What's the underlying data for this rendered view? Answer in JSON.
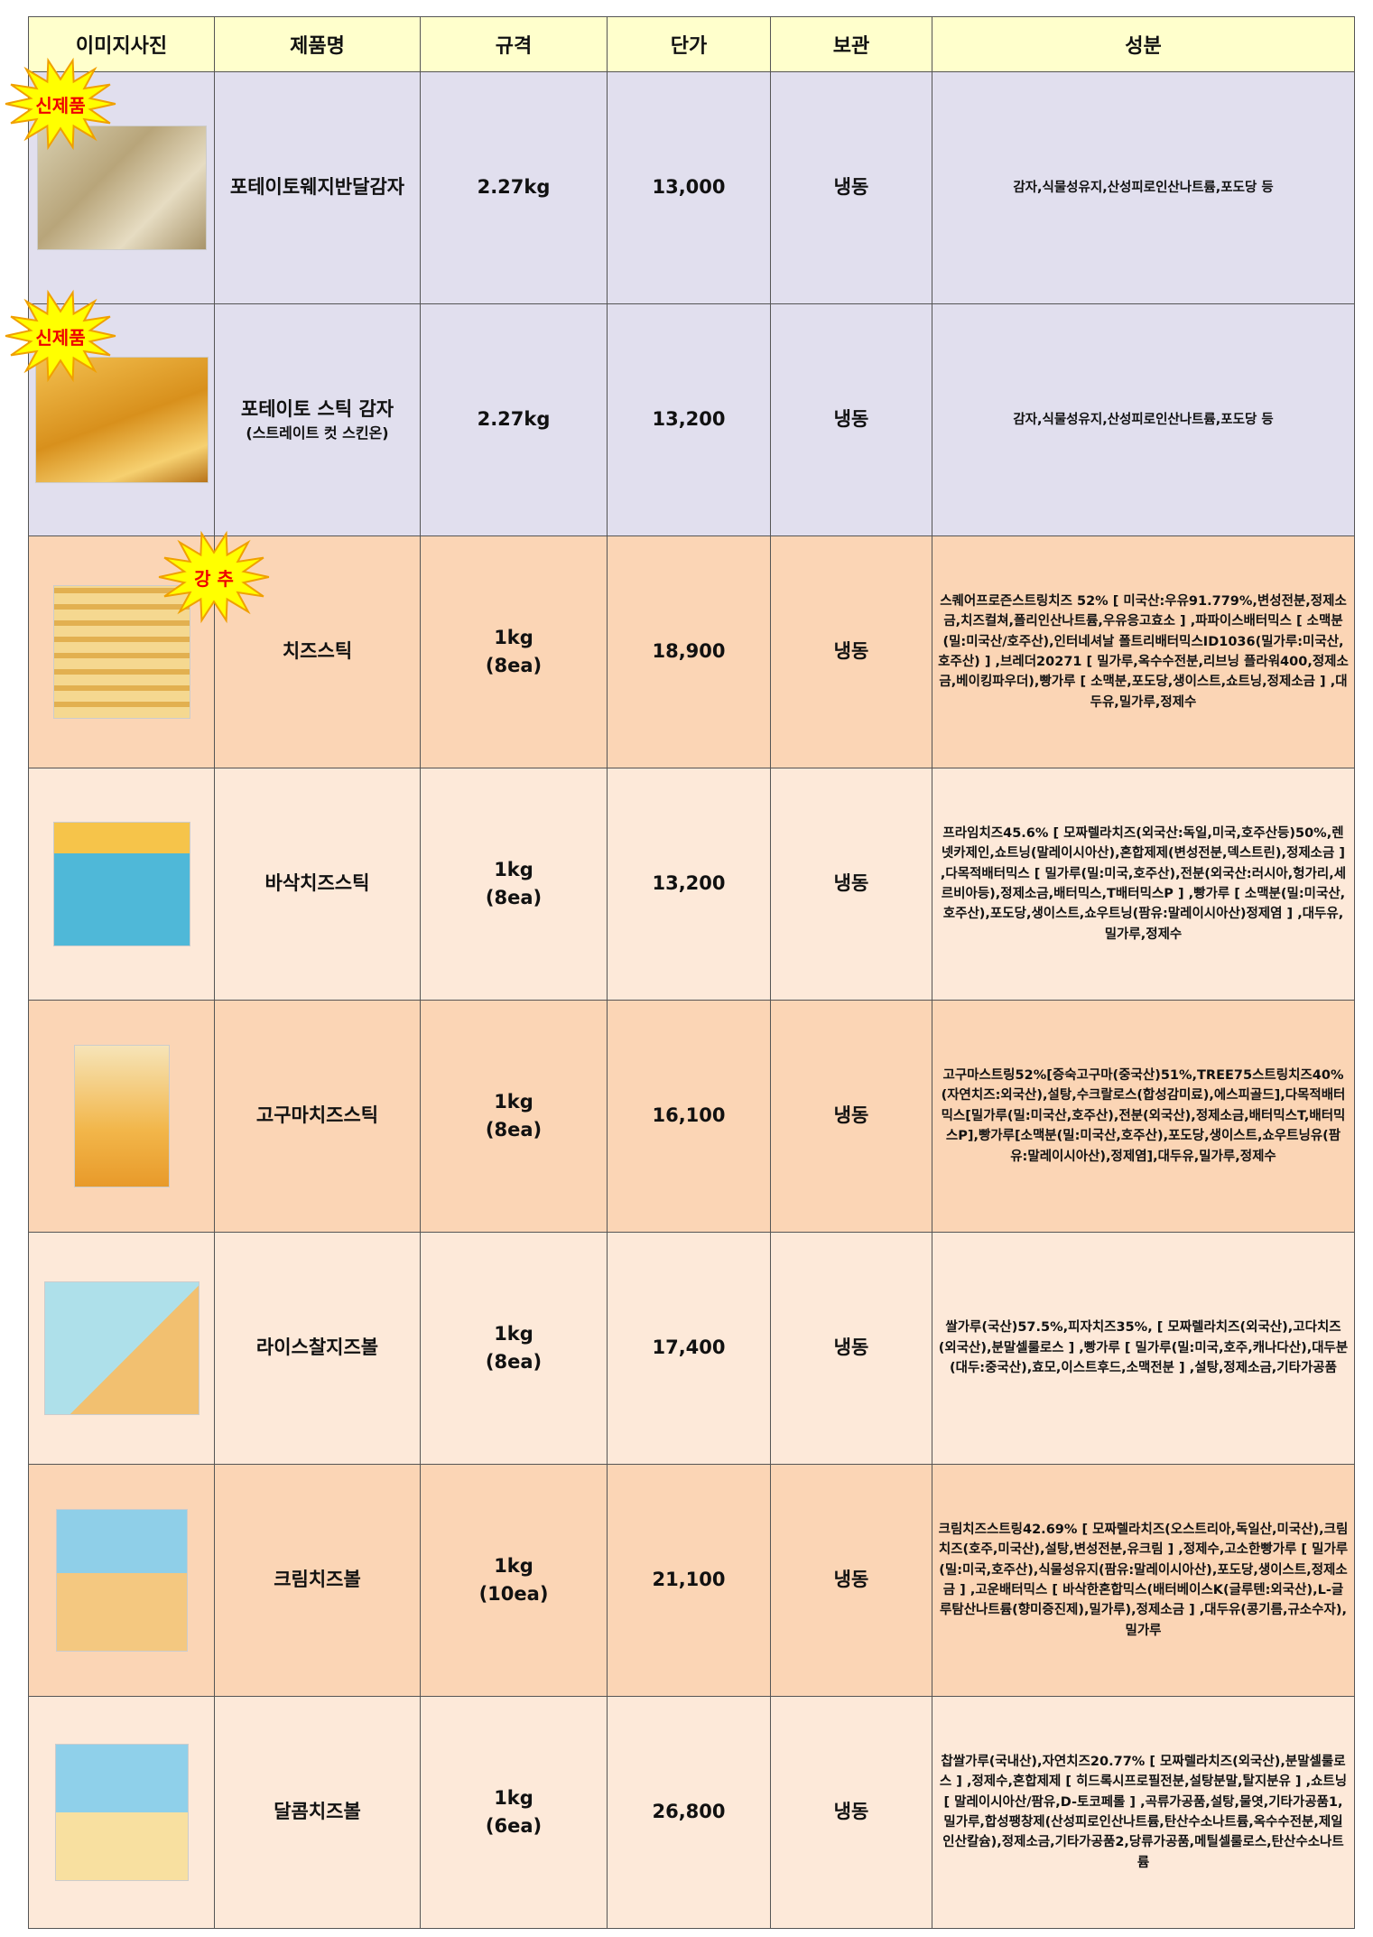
{
  "headers": [
    "이미지사진",
    "제품명",
    "규격",
    "단가",
    "보관",
    "성분"
  ],
  "colors": {
    "header": "#ffffcc",
    "lavender": "#e1dfee",
    "peach": "#fbd5b5",
    "light": "#fde9d9",
    "badge": "#ffff00",
    "badge_text": "#ee0000"
  },
  "rows": [
    {
      "badge": "신제품",
      "name": "포테이토웨지반달감자",
      "sub": "",
      "spec": "2.27kg",
      "spec_sub": "",
      "price": "13,000",
      "storage": "냉동",
      "ingredients": "감자,식물성유지,산성피로인산나트륨,포도당 등",
      "image": "potato-wedge-photo"
    },
    {
      "badge": "신제품",
      "name": "포테이토 스틱 감자",
      "sub": "(스트레이트 컷 스킨온)",
      "spec": "2.27kg",
      "spec_sub": "",
      "price": "13,200",
      "storage": "냉동",
      "ingredients": "감자,식물성유지,산성피로인산나트륨,포도당 등",
      "image": "potato-stick-photo"
    },
    {
      "badge": "강 추",
      "name": "치즈스틱",
      "sub": "",
      "spec": "1kg",
      "spec_sub": "(8ea)",
      "price": "18,900",
      "storage": "냉동",
      "ingredients": "스퀘어프로즌스트링치즈 52% [ 미국산:우유91.779%,변성전분,정제소금,치즈컬쳐,폴리인산나트륨,우유응고효소 ] ,파파이스배터믹스 [ 소맥분(밀:미국산/호주산),인터네셔날 폴트리배터믹스ID1036(밀가루:미국산,호주산) ] ,브레더20271 [ 밀가루,옥수수전분,리브닝 플라워400,정제소금,베이킹파우더),빵가루 [ 소맥분,포도당,생이스트,쇼트닝,정제소금 ] ,대두유,밀가루,정제수",
      "image": "cheese-stick-photo"
    },
    {
      "badge": "",
      "name": "바삭치즈스틱",
      "sub": "",
      "spec": "1kg",
      "spec_sub": "(8ea)",
      "price": "13,200",
      "storage": "냉동",
      "ingredients": "프라임치즈45.6% [ 모짜렐라치즈(외국산:독일,미국,호주산등)50%,렌넷카제인,쇼트닝(말레이시아산),혼합제제(변성전분,덱스트린),정제소금 ] ,다목적배터믹스 [ 밀가루(밀:미국,호주산),전분(외국산:러시아,헝가리,세르비아등),정제소금,배터믹스,T배터믹스P ] ,빵가루 [ 소맥분(밀:미국산,호주산),포도당,생이스트,쇼우트닝(팜유:말레이시아산)정제염 ] ,대두유,밀가루,정제수",
      "image": "crispy-cheese-stick-photo"
    },
    {
      "badge": "",
      "name": "고구마치즈스틱",
      "sub": "",
      "spec": "1kg",
      "spec_sub": "(8ea)",
      "price": "16,100",
      "storage": "냉동",
      "ingredients": "고구마스트링52%[증숙고구마(중국산)51%,TREE75스트링치즈40%(자연치즈:외국산),설탕,수크랄로스(합성감미료),에스피골드],다목적배터믹스[밀가루(밀:미국산,호주산),전분(외국산),정제소금,배터믹스T,배터믹스P],빵가루[소맥분(밀:미국산,호주산),포도당,생이스트,쇼우트닝유(팜유:말레이시아산),정제염],대두유,밀가루,정제수",
      "image": "sweet-potato-cheese-stick-photo"
    },
    {
      "badge": "",
      "name": "라이스찰지즈볼",
      "sub": "",
      "spec": "1kg",
      "spec_sub": "(8ea)",
      "price": "17,400",
      "storage": "냉동",
      "ingredients": "쌀가루(국산)57.5%,피자치즈35%, [ 모짜렐라치즈(외국산),고다치즈(외국산),분말셀룰로스 ] ,빵가루 [ 밀가루(밀:미국,호주,캐나다산),대두분(대두:중국산),효모,이스트후드,소맥전분 ] ,설탕,정제소금,기타가공품",
      "image": "rice-cheese-ball-photo"
    },
    {
      "badge": "",
      "name": "크림치즈볼",
      "sub": "",
      "spec": "1kg",
      "spec_sub": "(10ea)",
      "price": "21,100",
      "storage": "냉동",
      "ingredients": "크림치즈스트링42.69% [ 모짜렐라치즈(오스트리아,독일산,미국산),크림치즈(호주,미국산),설탕,변성전분,유크림 ] ,정제수,고소한빵가루 [ 밀가루(밀:미국,호주산),식물성유지(팜유:말레이시아산),포도당,생이스트,정제소금 ] ,고운배터믹스 [ 바삭한혼합믹스(배터베이스K(글루텐:외국산),L-글루탐산나트륨(향미증진제),밀가루),정제소금 ] ,대두유(콩기름,규소수자),밀가루",
      "image": "cream-cheese-ball-photo"
    },
    {
      "badge": "",
      "name": "달콤치즈볼",
      "sub": "",
      "spec": "1kg",
      "spec_sub": "(6ea)",
      "price": "26,800",
      "storage": "냉동",
      "ingredients": "찹쌀가루(국내산),자연치즈20.77% [ 모짜렐라치즈(외국산),분말셀룰로스 ] ,정제수,혼합제제 [ 히드록시프로필전분,설탕분말,탈지분유 ] ,쇼트닝 [ 말레이시아산/팜유,D-토코페롤 ] ,곡류가공품,설탕,물엿,기타가공품1,밀가루,합성팽창제(산성피로인산나트륨,탄산수소나트륨,옥수수전분,제일인산칼슘),정제소금,기타가공품2,당류가공품,메틸셀룰로스,탄산수소나트륨",
      "image": "sweet-cheese-ball-photo"
    }
  ]
}
